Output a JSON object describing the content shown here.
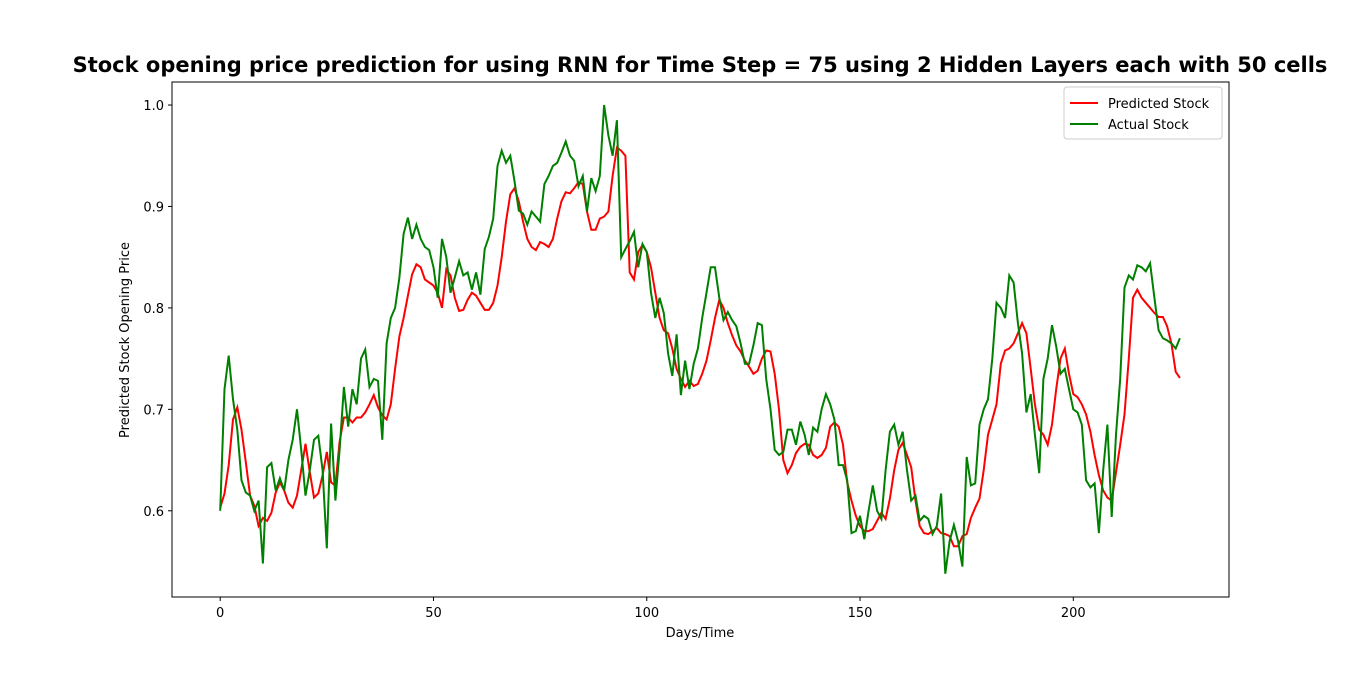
{
  "chart_data": {
    "type": "line",
    "title": "Stock opening price prediction for using RNN for Time Step = 75 using 2 Hidden Layers each with 50 cells",
    "xlabel": "Days/Time",
    "ylabel": "Predicted Stock Opening Price",
    "xlim": [
      -11.3,
      236.5
    ],
    "ylim": [
      0.515,
      1.0227
    ],
    "xticks": [
      0,
      50,
      100,
      150,
      200
    ],
    "yticks": [
      0.6,
      0.7,
      0.8,
      0.9,
      {
        "value": 1.0,
        "label": "1.0"
      }
    ],
    "legend": "upper right",
    "x": [
      0,
      1,
      2,
      3,
      4,
      5,
      6,
      7,
      8,
      9,
      10,
      11,
      12,
      13,
      14,
      15,
      16,
      17,
      18,
      19,
      20,
      21,
      22,
      23,
      24,
      25,
      26,
      27,
      28,
      29,
      30,
      31,
      32,
      33,
      34,
      35,
      36,
      37,
      38,
      39,
      40,
      41,
      42,
      43,
      44,
      45,
      46,
      47,
      48,
      49,
      50,
      51,
      52,
      53,
      54,
      55,
      56,
      57,
      58,
      59,
      60,
      61,
      62,
      63,
      64,
      65,
      66,
      67,
      68,
      69,
      70,
      71,
      72,
      73,
      74,
      75,
      76,
      77,
      78,
      79,
      80,
      81,
      82,
      83,
      84,
      85,
      86,
      87,
      88,
      89,
      90,
      91,
      92,
      93,
      94,
      95,
      96,
      97,
      98,
      99,
      100,
      101,
      102,
      103,
      104,
      105,
      106,
      107,
      108,
      109,
      110,
      111,
      112,
      113,
      114,
      115,
      116,
      117,
      118,
      119,
      120,
      121,
      122,
      123,
      124,
      125,
      126,
      127,
      128,
      129,
      130,
      131,
      132,
      133,
      134,
      135,
      136,
      137,
      138,
      139,
      140,
      141,
      142,
      143,
      144,
      145,
      146,
      147,
      148,
      149,
      150,
      151,
      152,
      153,
      154,
      155,
      156,
      157,
      158,
      159,
      160,
      161,
      162,
      163,
      164,
      165,
      166,
      167,
      168,
      169,
      170,
      171,
      172,
      173,
      174,
      175,
      176,
      177,
      178,
      179,
      180,
      181,
      182,
      183,
      184,
      185,
      186,
      187,
      188,
      189,
      190,
      191,
      192,
      193,
      194,
      195,
      196,
      197,
      198,
      199,
      200,
      201,
      202,
      203,
      204,
      205,
      206,
      207,
      208,
      209,
      210,
      211,
      212,
      213,
      214,
      215,
      216,
      217,
      218,
      219,
      220,
      221,
      222,
      223,
      224,
      225
    ],
    "series": [
      {
        "name": "Predicted Stock",
        "color": "#ff0000",
        "values": [
          0.603,
          0.617,
          0.645,
          0.69,
          0.702,
          0.68,
          0.648,
          0.615,
          0.605,
          0.585,
          0.593,
          0.59,
          0.598,
          0.618,
          0.628,
          0.62,
          0.608,
          0.603,
          0.615,
          0.64,
          0.666,
          0.638,
          0.613,
          0.617,
          0.635,
          0.658,
          0.628,
          0.625,
          0.668,
          0.692,
          0.692,
          0.687,
          0.692,
          0.692,
          0.697,
          0.705,
          0.714,
          0.702,
          0.694,
          0.69,
          0.705,
          0.74,
          0.772,
          0.79,
          0.812,
          0.833,
          0.843,
          0.84,
          0.828,
          0.825,
          0.822,
          0.815,
          0.8,
          0.838,
          0.832,
          0.81,
          0.797,
          0.798,
          0.808,
          0.815,
          0.812,
          0.805,
          0.798,
          0.798,
          0.805,
          0.822,
          0.85,
          0.885,
          0.912,
          0.918,
          0.905,
          0.885,
          0.868,
          0.86,
          0.857,
          0.865,
          0.863,
          0.86,
          0.868,
          0.888,
          0.905,
          0.914,
          0.913,
          0.918,
          0.924,
          0.922,
          0.895,
          0.877,
          0.877,
          0.888,
          0.89,
          0.895,
          0.93,
          0.958,
          0.955,
          0.95,
          0.835,
          0.828,
          0.855,
          0.862,
          0.855,
          0.84,
          0.815,
          0.79,
          0.778,
          0.775,
          0.76,
          0.74,
          0.73,
          0.722,
          0.728,
          0.723,
          0.725,
          0.735,
          0.748,
          0.768,
          0.79,
          0.808,
          0.8,
          0.785,
          0.773,
          0.763,
          0.757,
          0.748,
          0.742,
          0.735,
          0.738,
          0.75,
          0.758,
          0.757,
          0.735,
          0.7,
          0.65,
          0.637,
          0.645,
          0.657,
          0.663,
          0.666,
          0.665,
          0.655,
          0.652,
          0.655,
          0.662,
          0.683,
          0.687,
          0.683,
          0.665,
          0.628,
          0.61,
          0.595,
          0.585,
          0.58,
          0.58,
          0.582,
          0.59,
          0.598,
          0.592,
          0.612,
          0.64,
          0.66,
          0.667,
          0.655,
          0.643,
          0.61,
          0.585,
          0.578,
          0.577,
          0.58,
          0.583,
          0.578,
          0.577,
          0.575,
          0.565,
          0.565,
          0.575,
          0.577,
          0.593,
          0.603,
          0.612,
          0.64,
          0.675,
          0.69,
          0.705,
          0.745,
          0.758,
          0.76,
          0.765,
          0.775,
          0.785,
          0.775,
          0.74,
          0.705,
          0.68,
          0.675,
          0.665,
          0.685,
          0.72,
          0.75,
          0.76,
          0.735,
          0.715,
          0.712,
          0.705,
          0.695,
          0.678,
          0.655,
          0.635,
          0.62,
          0.613,
          0.61,
          0.638,
          0.665,
          0.695,
          0.75,
          0.81,
          0.818,
          0.81,
          0.805,
          0.8,
          0.795,
          0.791,
          0.791,
          0.782,
          0.765,
          0.737,
          0.731
        ]
      },
      {
        "name": "Actual Stock",
        "color": "#008000",
        "values": [
          0.6,
          0.72,
          0.753,
          0.71,
          0.68,
          0.63,
          0.618,
          0.615,
          0.6,
          0.61,
          0.548,
          0.643,
          0.647,
          0.62,
          0.632,
          0.62,
          0.65,
          0.67,
          0.7,
          0.66,
          0.615,
          0.64,
          0.67,
          0.674,
          0.64,
          0.563,
          0.686,
          0.61,
          0.66,
          0.722,
          0.683,
          0.72,
          0.705,
          0.75,
          0.759,
          0.722,
          0.73,
          0.728,
          0.67,
          0.765,
          0.79,
          0.8,
          0.83,
          0.873,
          0.889,
          0.868,
          0.882,
          0.868,
          0.86,
          0.857,
          0.84,
          0.81,
          0.868,
          0.85,
          0.815,
          0.83,
          0.846,
          0.832,
          0.835,
          0.818,
          0.835,
          0.813,
          0.858,
          0.87,
          0.888,
          0.94,
          0.955,
          0.943,
          0.95,
          0.925,
          0.896,
          0.893,
          0.882,
          0.895,
          0.89,
          0.885,
          0.922,
          0.93,
          0.94,
          0.943,
          0.953,
          0.964,
          0.95,
          0.945,
          0.92,
          0.93,
          0.895,
          0.928,
          0.915,
          0.93,
          1.0,
          0.97,
          0.95,
          0.985,
          0.85,
          0.858,
          0.866,
          0.875,
          0.84,
          0.863,
          0.855,
          0.815,
          0.79,
          0.81,
          0.795,
          0.755,
          0.733,
          0.774,
          0.714,
          0.748,
          0.72,
          0.745,
          0.76,
          0.79,
          0.815,
          0.84,
          0.84,
          0.81,
          0.788,
          0.796,
          0.788,
          0.782,
          0.765,
          0.745,
          0.745,
          0.763,
          0.785,
          0.783,
          0.73,
          0.7,
          0.66,
          0.655,
          0.658,
          0.68,
          0.68,
          0.665,
          0.688,
          0.675,
          0.655,
          0.682,
          0.678,
          0.7,
          0.715,
          0.705,
          0.69,
          0.645,
          0.645,
          0.63,
          0.578,
          0.58,
          0.595,
          0.572,
          0.6,
          0.625,
          0.6,
          0.592,
          0.64,
          0.678,
          0.685,
          0.665,
          0.678,
          0.64,
          0.61,
          0.615,
          0.59,
          0.595,
          0.592,
          0.577,
          0.585,
          0.617,
          0.538,
          0.57,
          0.586,
          0.57,
          0.545,
          0.653,
          0.625,
          0.627,
          0.685,
          0.7,
          0.71,
          0.75,
          0.805,
          0.8,
          0.79,
          0.832,
          0.825,
          0.785,
          0.755,
          0.697,
          0.715,
          0.675,
          0.637,
          0.73,
          0.75,
          0.783,
          0.762,
          0.735,
          0.74,
          0.72,
          0.7,
          0.697,
          0.685,
          0.63,
          0.623,
          0.627,
          0.578,
          0.64,
          0.685,
          0.594,
          0.675,
          0.73,
          0.82,
          0.832,
          0.828,
          0.842,
          0.84,
          0.836,
          0.844,
          0.81,
          0.778,
          0.77,
          0.768,
          0.765,
          0.76,
          0.77
        ]
      }
    ]
  }
}
